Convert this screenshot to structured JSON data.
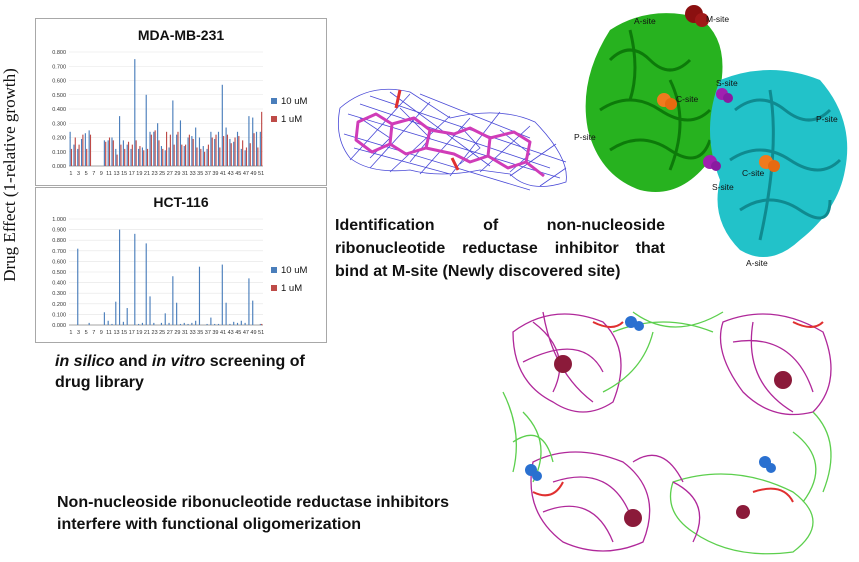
{
  "y_axis_title": "Drug Effect (1-relative growth)",
  "captions": {
    "identification_lines": [
      "Identification of non-nucleoside",
      "ribonucleotide reductase inhibitor that",
      "bind at M-site (Newly discovered site)"
    ],
    "screening_parts": {
      "p1": "in silico",
      "p2": " and ",
      "p3": "in vitro",
      "p4": " screening of",
      "line2": "drug library"
    },
    "oligomer_lines": [
      "Non-nucleoside ribonucleotide reductase inhibitors",
      "interfere with functional oligomerization"
    ]
  },
  "structure_labels": {
    "a_site_top": "A-site",
    "m_site": "M-site",
    "s_site_top": "S-site",
    "c_site_left": "C-site",
    "p_site_left": "P-site",
    "p_site_right": "P-site",
    "c_site_right": "C-site",
    "s_site_bottom": "S-site",
    "a_site_bottom": "A-site"
  },
  "colors": {
    "series_10uM": "#4a7ebb",
    "series_1uM": "#be4b48",
    "green_subunit": "#27b21f",
    "cyan_subunit": "#22c2c9",
    "mesh": "#2a2ad0",
    "ligand": "#d03cb8",
    "oligomer_magenta": "#b0289a",
    "oligomer_green": "#5ccf4d"
  },
  "chart_data": [
    {
      "type": "bar",
      "title": "MDA-MB-231",
      "x_tick_labels": [
        "1",
        "3",
        "5",
        "7",
        "9",
        "11",
        "13",
        "15",
        "17",
        "19",
        "21",
        "23",
        "25",
        "27",
        "29",
        "31",
        "33",
        "35",
        "37",
        "39",
        "41",
        "43",
        "45",
        "47",
        "49",
        "51"
      ],
      "x": [
        1,
        2,
        3,
        4,
        5,
        6,
        7,
        8,
        9,
        10,
        11,
        12,
        13,
        14,
        15,
        16,
        17,
        18,
        19,
        20,
        21,
        22,
        23,
        24,
        25,
        26,
        27,
        28,
        29,
        30,
        31,
        32,
        33,
        34,
        35,
        36,
        37,
        38,
        39,
        40,
        41,
        42,
        43,
        44,
        45,
        46,
        47,
        48,
        49,
        50,
        51
      ],
      "ylim": [
        0,
        0.8
      ],
      "y_tick_labels": [
        "0.000",
        "0.100",
        "0.200",
        "0.300",
        "0.400",
        "0.500",
        "0.600",
        "0.700",
        "0.800"
      ],
      "legend_position": "right",
      "series": [
        {
          "name": "10 uM",
          "values": [
            0.24,
            0.15,
            0.12,
            0.19,
            0.23,
            0.25,
            0.0,
            0.0,
            0.0,
            0.18,
            0.18,
            0.2,
            0.12,
            0.35,
            0.18,
            0.15,
            0.12,
            0.75,
            0.12,
            0.13,
            0.5,
            0.24,
            0.24,
            0.3,
            0.14,
            0.11,
            0.13,
            0.46,
            0.22,
            0.32,
            0.14,
            0.2,
            0.21,
            0.27,
            0.2,
            0.14,
            0.12,
            0.24,
            0.19,
            0.24,
            0.57,
            0.27,
            0.19,
            0.17,
            0.24,
            0.12,
            0.11,
            0.35,
            0.34,
            0.24,
            0.24
          ]
        },
        {
          "name": "1 uM",
          "values": [
            0.12,
            0.2,
            0.15,
            0.22,
            0.12,
            0.22,
            0.0,
            0.0,
            0.0,
            0.17,
            0.2,
            0.18,
            0.08,
            0.15,
            0.12,
            0.17,
            0.15,
            0.18,
            0.14,
            0.11,
            0.12,
            0.22,
            0.25,
            0.18,
            0.12,
            0.24,
            0.22,
            0.15,
            0.24,
            0.15,
            0.15,
            0.22,
            0.19,
            0.13,
            0.12,
            0.1,
            0.15,
            0.2,
            0.22,
            0.13,
            0.21,
            0.22,
            0.16,
            0.2,
            0.21,
            0.18,
            0.13,
            0.16,
            0.23,
            0.13,
            0.38
          ]
        }
      ]
    },
    {
      "type": "bar",
      "title": "HCT-116",
      "x_tick_labels": [
        "1",
        "3",
        "5",
        "7",
        "9",
        "11",
        "13",
        "15",
        "17",
        "19",
        "21",
        "23",
        "25",
        "27",
        "29",
        "31",
        "33",
        "35",
        "37",
        "39",
        "41",
        "43",
        "45",
        "47",
        "49",
        "51"
      ],
      "x": [
        1,
        2,
        3,
        4,
        5,
        6,
        7,
        8,
        9,
        10,
        11,
        12,
        13,
        14,
        15,
        16,
        17,
        18,
        19,
        20,
        21,
        22,
        23,
        24,
        25,
        26,
        27,
        28,
        29,
        30,
        31,
        32,
        33,
        34,
        35,
        36,
        37,
        38,
        39,
        40,
        41,
        42,
        43,
        44,
        45,
        46,
        47,
        48,
        49,
        50,
        51
      ],
      "ylim": [
        0,
        1.0
      ],
      "y_tick_labels": [
        "0.000",
        "0.100",
        "0.200",
        "0.300",
        "0.400",
        "0.500",
        "0.600",
        "0.700",
        "0.800",
        "0.900",
        "1.000"
      ],
      "legend_position": "right",
      "series": [
        {
          "name": "10 uM",
          "values": [
            0,
            0,
            0.72,
            0,
            0,
            0.02,
            0,
            0,
            0,
            0.12,
            0.04,
            0.01,
            0.22,
            0.9,
            0.03,
            0.16,
            0.0,
            0.86,
            0.01,
            0.02,
            0.77,
            0.27,
            0.02,
            0,
            0.02,
            0.11,
            0.02,
            0.46,
            0.21,
            0.01,
            0.02,
            0.01,
            0.02,
            0.04,
            0.55,
            0.0,
            0.01,
            0.07,
            0.01,
            0.01,
            0.57,
            0.21,
            0.01,
            0.03,
            0.02,
            0.04,
            0.02,
            0.44,
            0.23,
            0.0,
            0.01
          ]
        },
        {
          "name": "1 uM",
          "values": [
            0,
            0,
            0,
            0,
            0,
            0,
            0,
            0,
            0,
            0,
            0,
            0,
            0,
            0,
            0,
            0,
            0,
            0,
            0,
            0,
            0,
            0,
            0,
            0,
            0,
            0,
            0,
            0,
            0,
            0,
            0,
            0,
            0,
            0,
            0,
            0,
            0,
            0,
            0,
            0,
            0,
            0,
            0,
            0,
            0,
            0,
            0,
            0,
            0,
            0,
            0.01
          ]
        }
      ]
    }
  ]
}
